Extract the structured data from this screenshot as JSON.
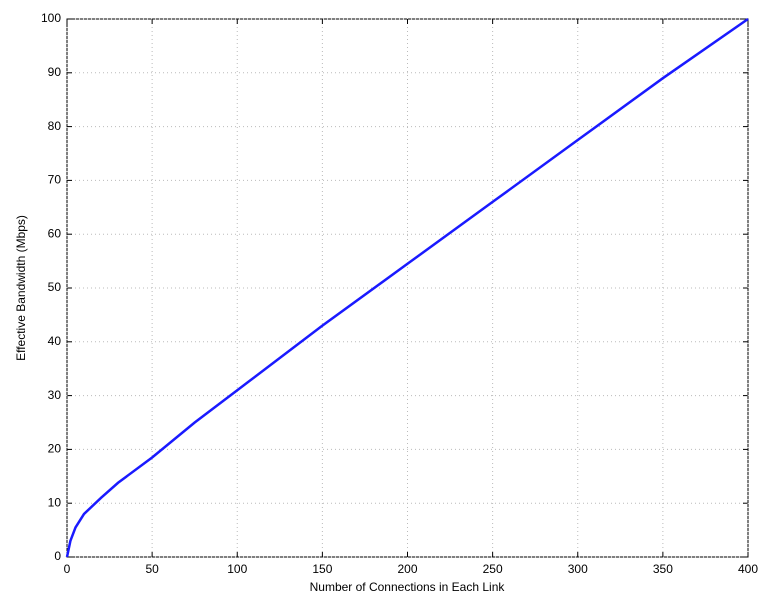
{
  "chart_data": {
    "type": "line",
    "x_label": "Number of Connections in Each Link",
    "y_label": "Effective Bandwidth (Mbps)",
    "x": [
      0,
      2,
      5,
      10,
      20,
      30,
      50,
      75,
      100,
      150,
      200,
      250,
      300,
      350,
      400
    ],
    "series": [
      {
        "color": "#1a1aff",
        "values": [
          0,
          3,
          5.5,
          8,
          11,
          13.8,
          18.5,
          25,
          31,
          43,
          54.5,
          66,
          77.5,
          89,
          100
        ]
      }
    ],
    "xlim": [
      0,
      400
    ],
    "ylim": [
      0,
      100
    ],
    "xticks": [
      0,
      50,
      100,
      150,
      200,
      250,
      300,
      350,
      400
    ],
    "yticks": [
      0,
      10,
      20,
      30,
      40,
      50,
      60,
      70,
      80,
      90,
      100
    ],
    "grid": true
  }
}
